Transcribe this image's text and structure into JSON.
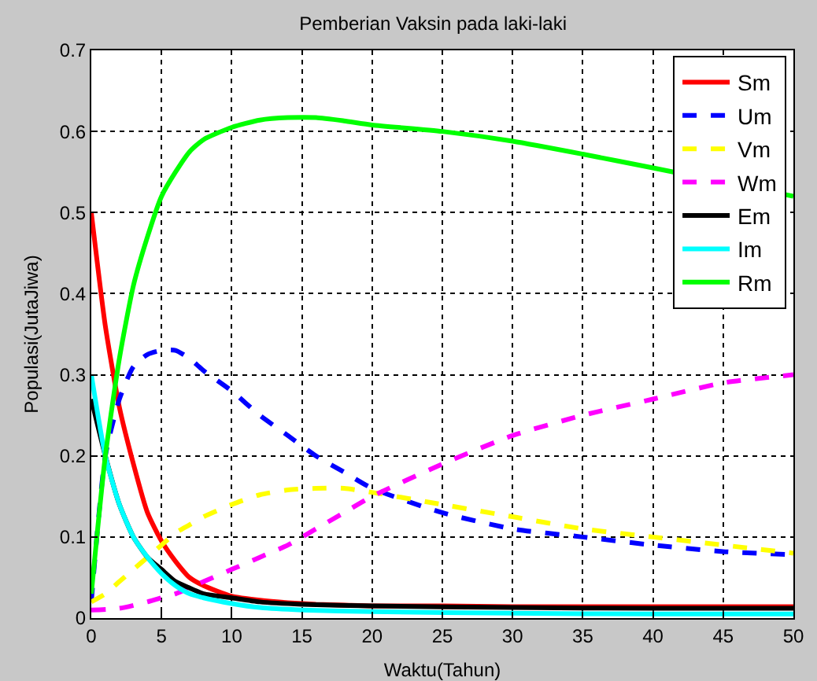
{
  "chart_data": {
    "type": "line",
    "title": "Pemberian Vaksin pada laki-laki",
    "xlabel": "Waktu(Tahun)",
    "ylabel": "Populasi(JutaJiwa)",
    "xlim": [
      0,
      50
    ],
    "xticks": [
      0,
      5,
      10,
      15,
      20,
      25,
      30,
      35,
      40,
      45,
      50
    ],
    "ylim": [
      0,
      0.7
    ],
    "yticks": [
      0,
      0.1,
      0.2,
      0.3,
      0.4,
      0.5,
      0.6,
      0.7
    ],
    "grid": true,
    "legend": "top right",
    "series": [
      {
        "name": "Sm",
        "color": "#ff0000",
        "line_style": "solid",
        "x": [
          0,
          1,
          2,
          3,
          4,
          5,
          6,
          7,
          8,
          10,
          12,
          14,
          16,
          18,
          20,
          25,
          30,
          35,
          40,
          45,
          50
        ],
        "values": [
          0.5,
          0.36,
          0.26,
          0.19,
          0.13,
          0.095,
          0.07,
          0.05,
          0.04,
          0.027,
          0.022,
          0.019,
          0.017,
          0.016,
          0.015,
          0.015,
          0.014,
          0.014,
          0.014,
          0.014,
          0.014
        ]
      },
      {
        "name": "Um",
        "color": "#0000ff",
        "line_style": "dashed",
        "x": [
          0,
          1,
          2,
          3,
          4,
          5,
          6,
          7,
          8,
          10,
          12,
          14,
          16,
          18,
          20,
          25,
          30,
          35,
          40,
          45,
          50
        ],
        "values": [
          0.02,
          0.2,
          0.27,
          0.31,
          0.325,
          0.33,
          0.33,
          0.32,
          0.305,
          0.28,
          0.25,
          0.225,
          0.2,
          0.18,
          0.16,
          0.13,
          0.11,
          0.1,
          0.09,
          0.082,
          0.078
        ]
      },
      {
        "name": "Vm",
        "color": "#ffff00",
        "line_style": "dashed",
        "x": [
          0,
          1,
          2,
          3,
          4,
          5,
          6,
          7,
          8,
          10,
          12,
          14,
          16,
          18,
          20,
          25,
          30,
          35,
          40,
          45,
          50
        ],
        "values": [
          0.02,
          0.03,
          0.045,
          0.06,
          0.075,
          0.09,
          0.105,
          0.115,
          0.125,
          0.14,
          0.152,
          0.158,
          0.16,
          0.16,
          0.155,
          0.14,
          0.125,
          0.11,
          0.1,
          0.09,
          0.08
        ]
      },
      {
        "name": "Wm",
        "color": "#ff00ff",
        "line_style": "dashed",
        "x": [
          0,
          2,
          4,
          5,
          6,
          8,
          10,
          12,
          14,
          16,
          18,
          20,
          25,
          30,
          35,
          40,
          45,
          50
        ],
        "values": [
          0.01,
          0.012,
          0.02,
          0.025,
          0.03,
          0.045,
          0.06,
          0.075,
          0.09,
          0.11,
          0.13,
          0.15,
          0.19,
          0.225,
          0.25,
          0.27,
          0.29,
          0.3
        ]
      },
      {
        "name": "Em",
        "color": "#000000",
        "line_style": "solid",
        "x": [
          0,
          1,
          2,
          3,
          4,
          5,
          6,
          7,
          8,
          10,
          12,
          15,
          20,
          30,
          40,
          50
        ],
        "values": [
          0.27,
          0.2,
          0.14,
          0.1,
          0.075,
          0.06,
          0.045,
          0.037,
          0.03,
          0.025,
          0.02,
          0.017,
          0.015,
          0.013,
          0.012,
          0.012
        ]
      },
      {
        "name": "Im",
        "color": "#00ffff",
        "line_style": "solid",
        "x": [
          0,
          1,
          2,
          3,
          4,
          5,
          6,
          7,
          8,
          10,
          12,
          15,
          20,
          30,
          40,
          50
        ],
        "values": [
          0.3,
          0.2,
          0.14,
          0.1,
          0.075,
          0.055,
          0.04,
          0.03,
          0.025,
          0.018,
          0.013,
          0.01,
          0.008,
          0.006,
          0.005,
          0.005
        ]
      },
      {
        "name": "Rm",
        "color": "#00ff00",
        "line_style": "solid",
        "x": [
          0,
          1,
          2,
          3,
          4,
          5,
          6,
          7,
          8,
          10,
          12,
          14,
          16,
          18,
          20,
          25,
          30,
          35,
          40,
          50
        ],
        "values": [
          0.03,
          0.2,
          0.32,
          0.41,
          0.47,
          0.52,
          0.55,
          0.575,
          0.59,
          0.605,
          0.614,
          0.617,
          0.617,
          0.613,
          0.608,
          0.6,
          0.588,
          0.572,
          0.555,
          0.52
        ]
      }
    ]
  }
}
